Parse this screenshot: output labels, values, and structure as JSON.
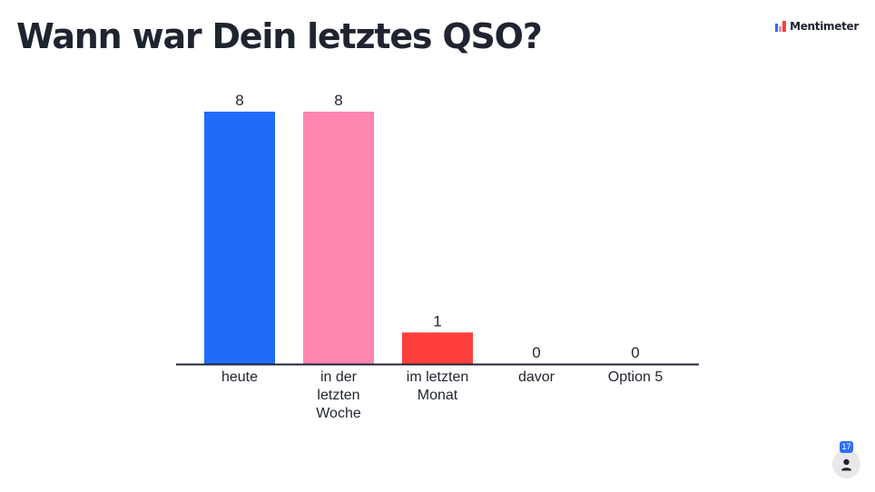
{
  "slide": {
    "question": "Wann war Dein letztes QSO?",
    "brand_name": "Mentimeter",
    "participant_count": "17"
  },
  "colors": {
    "text": "#1f2430",
    "axis": "#1f2430",
    "series": [
      "#1f6cfb",
      "#ff86ae",
      "#fe3f3b",
      "#8e8e8e",
      "#8e8e8e"
    ]
  },
  "icons": {
    "brand": "mentimeter-logo-icon",
    "participants": "person-icon"
  },
  "chart_data": {
    "type": "bar",
    "title": "",
    "xlabel": "",
    "ylabel": "",
    "categories": [
      [
        "heute"
      ],
      [
        "in der",
        "letzten",
        "Woche"
      ],
      [
        "im letzten",
        "Monat"
      ],
      [
        "davor"
      ],
      [
        "Option 5"
      ]
    ],
    "values": [
      8,
      8,
      1,
      0,
      0
    ],
    "value_labels": [
      "8",
      "8",
      "1",
      "0",
      "0"
    ],
    "ylim": [
      0,
      8
    ],
    "grid": false,
    "legend": "none"
  }
}
